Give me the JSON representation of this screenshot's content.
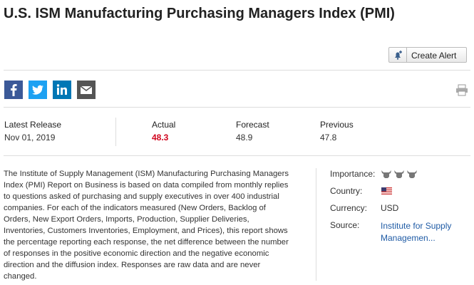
{
  "header": {
    "title": "U.S. ISM Manufacturing Purchasing Managers Index (PMI)",
    "create_alert": "Create Alert"
  },
  "release": {
    "columns": [
      {
        "label": "Latest Release",
        "value": "Nov 01, 2019"
      },
      {
        "label": "Actual",
        "value": "48.3"
      },
      {
        "label": "Forecast",
        "value": "48.9"
      },
      {
        "label": "Previous",
        "value": "47.8"
      }
    ]
  },
  "description": "The Institute of Supply Management (ISM) Manufacturing Purchasing Managers Index (PMI) Report on Business is based on data compiled from monthly replies to questions asked of purchasing and supply executives in over 400 industrial companies. For each of the indicators measured (New Orders, Backlog of Orders, New Export Orders, Imports, Production, Supplier Deliveries, Inventories, Customers Inventories, Employment, and Prices), this report shows the percentage reporting each response, the net difference between the number of responses in the positive economic direction and the negative economic direction and the diffusion index. Responses are raw data and are never changed.",
  "details": {
    "importance_label": "Importance:",
    "country_label": "Country:",
    "currency_label": "Currency:",
    "currency": "USD",
    "source_label": "Source:",
    "source": "Institute for Supply Managemen..."
  }
}
